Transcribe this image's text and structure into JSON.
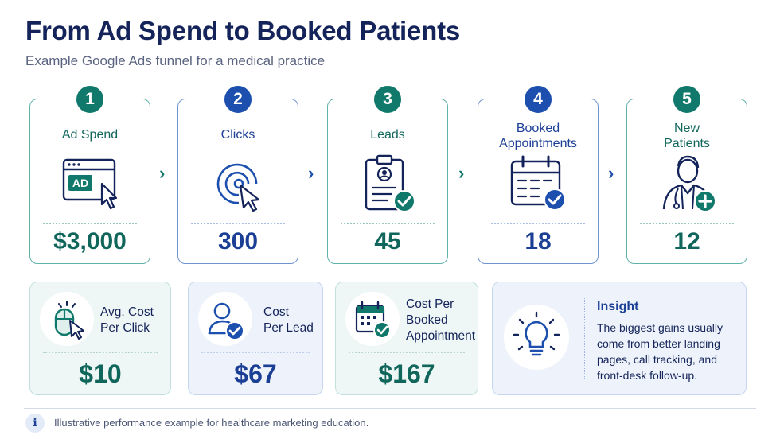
{
  "header": {
    "title": "From Ad Spend to Booked Patients",
    "subtitle": "Example Google Ads funnel for a medical practice"
  },
  "colors": {
    "teal": "#11796b",
    "blue": "#1c4fae",
    "navy": "#14245a"
  },
  "stages": [
    {
      "num": "1",
      "label": "Ad Spend",
      "value": "$3,000",
      "icon": "ad-browser-icon",
      "ad_text": "AD",
      "color": "teal"
    },
    {
      "num": "2",
      "label": "Clicks",
      "value": "300",
      "icon": "click-target-icon",
      "color": "blue"
    },
    {
      "num": "3",
      "label": "Leads",
      "value": "45",
      "icon": "clipboard-check-icon",
      "color": "teal"
    },
    {
      "num": "4",
      "label_line1": "Booked",
      "label_line2": "Appointments",
      "value": "18",
      "icon": "calendar-check-icon",
      "color": "blue"
    },
    {
      "num": "5",
      "label_line1": "New",
      "label_line2": "Patients",
      "value": "12",
      "icon": "doctor-plus-icon",
      "color": "teal"
    }
  ],
  "metrics": [
    {
      "label_line1": "Avg. Cost",
      "label_line2": "Per Click",
      "value": "$10",
      "icon": "mouse-click-icon",
      "color": "teal"
    },
    {
      "label_line1": "Cost",
      "label_line2": "Per Lead",
      "value": "$67",
      "icon": "user-check-icon",
      "color": "blue"
    },
    {
      "label_line1": "Cost Per",
      "label_line2": "Booked",
      "label_line3": "Appointment",
      "value": "$167",
      "icon": "calendar-check-icon",
      "color": "teal"
    }
  ],
  "insight": {
    "title": "Insight",
    "text": "The biggest gains usually come from better landing pages, call tracking, and front-desk follow-up.",
    "icon": "lightbulb-icon"
  },
  "footer": {
    "icon_glyph": "i",
    "text": "Illustrative performance example for healthcare marketing education."
  }
}
